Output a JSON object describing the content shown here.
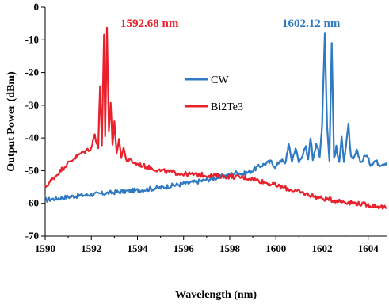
{
  "chart_data": {
    "type": "line",
    "xlabel": "Wavelength (nm)",
    "ylabel": "Output Power (dBm)",
    "xlim": [
      1590,
      1604.8
    ],
    "ylim": [
      -70,
      0
    ],
    "xticks": [
      "1590",
      "1592",
      "1594",
      "1596",
      "1598",
      "1600",
      "1602",
      "1604"
    ],
    "yticks": [
      "0",
      "-10",
      "-20",
      "-30",
      "-40",
      "-50",
      "-60",
      "-70"
    ],
    "xtick_values": [
      1590,
      1592,
      1594,
      1596,
      1598,
      1600,
      1602,
      1604
    ],
    "ytick_values": [
      0,
      -10,
      -20,
      -30,
      -40,
      -50,
      -60,
      -70
    ],
    "legend_position": "center",
    "grid": false,
    "series": [
      {
        "name": "CW",
        "color": "#2f7ac2",
        "x": [
          1590,
          1590.5,
          1591,
          1591.5,
          1592,
          1592.5,
          1593,
          1593.5,
          1594,
          1594.5,
          1595,
          1595.5,
          1596,
          1596.5,
          1597,
          1597.5,
          1598,
          1598.3,
          1598.6,
          1598.9,
          1599.2,
          1599.5,
          1599.8,
          1600,
          1600.2,
          1600.4,
          1600.55,
          1600.7,
          1600.85,
          1601,
          1601.15,
          1601.3,
          1601.4,
          1601.5,
          1601.6,
          1601.75,
          1601.9,
          1602.0,
          1602.12,
          1602.22,
          1602.32,
          1602.42,
          1602.52,
          1602.62,
          1602.75,
          1602.85,
          1602.95,
          1603.05,
          1603.15,
          1603.25,
          1603.35,
          1603.5,
          1603.7,
          1603.9,
          1604.1,
          1604.3,
          1604.5,
          1604.8
        ],
        "y": [
          -59,
          -58.5,
          -58,
          -57.6,
          -57.3,
          -57,
          -56.6,
          -56.3,
          -56,
          -55.6,
          -55.2,
          -54.6,
          -54,
          -53.5,
          -52.8,
          -52,
          -51.3,
          -50.5,
          -51,
          -50.2,
          -49,
          -48,
          -47.3,
          -49,
          -46.5,
          -48,
          -42,
          -47,
          -43,
          -47.5,
          -45,
          -43,
          -47,
          -39.5,
          -46.5,
          -41.5,
          -46,
          -36,
          -8,
          -36,
          -47,
          -11,
          -46,
          -43,
          -48,
          -39,
          -47,
          -42,
          -36,
          -46,
          -47,
          -44,
          -47.5,
          -45,
          -48,
          -47,
          -48,
          -47.5
        ]
      },
      {
        "name": "Bi2Te3",
        "color": "#e8212c",
        "x": [
          1590,
          1590.4,
          1590.8,
          1591.2,
          1591.6,
          1592.0,
          1592.15,
          1592.3,
          1592.38,
          1592.46,
          1592.55,
          1592.6,
          1592.68,
          1592.76,
          1592.84,
          1592.92,
          1593.0,
          1593.1,
          1593.2,
          1593.3,
          1593.4,
          1593.5,
          1593.7,
          1594,
          1594.5,
          1595,
          1595.5,
          1596,
          1596.5,
          1597,
          1597.5,
          1598,
          1598.5,
          1599,
          1599.5,
          1600,
          1600.5,
          1601,
          1601.5,
          1602,
          1602.5,
          1603,
          1603.5,
          1604,
          1604.5,
          1604.8
        ],
        "y": [
          -55,
          -52,
          -49,
          -46.5,
          -44.5,
          -43,
          -39,
          -43,
          -24,
          -42,
          -9,
          -40,
          -6.5,
          -38,
          -29,
          -42,
          -35.5,
          -44,
          -41,
          -45.5,
          -43,
          -46.5,
          -47,
          -48,
          -49,
          -50,
          -50.5,
          -51,
          -51.2,
          -51.4,
          -51.6,
          -51.8,
          -52,
          -52.5,
          -53.5,
          -54.5,
          -55.5,
          -56.5,
          -57.5,
          -58.5,
          -59,
          -59.5,
          -60,
          -60.5,
          -61,
          -61.5
        ]
      }
    ],
    "annotations": [
      {
        "text": "1592.68 nm",
        "color": "#e8212c"
      },
      {
        "text": "1602.12 nm",
        "color": "#2f7ac2"
      }
    ]
  }
}
